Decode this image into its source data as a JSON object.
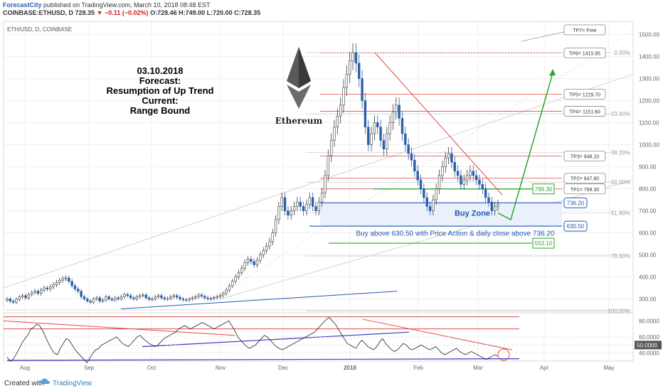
{
  "header": {
    "author": "ForecastCity",
    "published": "published on TradingView.com, March 10, 2018 08:48 EST",
    "symbol": "COINBASE:ETHUSD, D",
    "last": "728.35",
    "change": "▼ −0.11 (−0.02%)",
    "ohlc": "O:728.46 H:749.00 L:720.00 C:728.35"
  },
  "footer": {
    "created": "Created with",
    "brand": "TradingView"
  },
  "chart_data": {
    "type": "candlestick",
    "title": "ETH/USD, D, COINBASE",
    "y_ticks": [
      "1500.00",
      "1400.00",
      "1300.00",
      "1200.00",
      "1100.00",
      "1000.00",
      "900.00",
      "800.00",
      "700.00",
      "600.00",
      "500.00",
      "400.00",
      "300.00"
    ],
    "ylim": [
      250,
      1560
    ],
    "x_ticks": [
      "Aug",
      "Sep",
      "Oct",
      "Nov",
      "Dec",
      "2018",
      "Feb",
      "Mar",
      "Apr",
      "May"
    ],
    "last_price_label": "736.20",
    "annotation": {
      "date": "03.10.2018",
      "forecast_label": "Forecast:",
      "forecast": "Resumption of Up Trend",
      "current_label": "Current:",
      "current": "Range Bound"
    },
    "logo_text": "Ethereum",
    "buy_zone": "Buy Zone",
    "buy_condition": "Buy above 630.50 with Price Action & daily close above 736.20",
    "fib_levels": [
      {
        "label": "0.00%",
        "price": 1418
      },
      {
        "label": "23.60%",
        "price": 1140
      },
      {
        "label": "38.20%",
        "price": 965
      },
      {
        "label": "50.00%",
        "price": 830
      },
      {
        "label": "61.80%",
        "price": 690
      },
      {
        "label": "78.60%",
        "price": 495
      },
      {
        "label": "100.00%",
        "price": 245
      }
    ],
    "targets": [
      {
        "label": "TP7= Free",
        "price": 1510
      },
      {
        "label": "TP6= 1415.95",
        "price": 1415.95
      },
      {
        "label": "TP5= 1229.70",
        "price": 1229.7
      },
      {
        "label": "TP4= 1151.60",
        "price": 1151.6
      },
      {
        "label": "TP3= 948.10",
        "price": 948.1
      },
      {
        "label": "TP2= 847.80",
        "price": 847.8
      },
      {
        "label": "TP1= 799.30",
        "price": 799.3
      }
    ],
    "price_boxes": [
      {
        "label": "799.30",
        "price": 799.3,
        "color": "#2aa52a"
      },
      {
        "label": "736.20",
        "price": 736.2,
        "color": "#2058b4"
      },
      {
        "label": "630.50",
        "price": 630.5,
        "color": "#2058b4"
      },
      {
        "label": "553.10",
        "price": 553.1,
        "color": "#2aa52a"
      }
    ],
    "close_series": [
      300,
      290,
      285,
      298,
      310,
      315,
      305,
      320,
      330,
      335,
      325,
      340,
      350,
      345,
      355,
      365,
      375,
      385,
      392,
      395,
      380,
      360,
      345,
      335,
      310,
      300,
      290,
      285,
      300,
      305,
      290,
      295,
      310,
      300,
      295,
      305,
      300,
      310,
      320,
      315,
      305,
      300,
      310,
      315,
      318,
      305,
      298,
      300,
      310,
      315,
      305,
      300,
      302,
      310,
      315,
      308,
      300,
      296,
      295,
      300,
      305,
      310,
      318,
      312,
      305,
      300,
      302,
      306,
      310,
      315,
      325,
      340,
      360,
      380,
      400,
      420,
      440,
      465,
      480,
      470,
      455,
      475,
      500,
      520,
      540,
      560,
      600,
      660,
      720,
      760,
      700,
      680,
      700,
      720,
      740,
      720,
      700,
      730,
      760,
      720,
      700,
      740,
      780,
      860,
      950,
      1020,
      1080,
      1130,
      1180,
      1260,
      1320,
      1380,
      1418,
      1370,
      1300,
      1200,
      1080,
      1000,
      1050,
      1100,
      1080,
      1020,
      980,
      1050,
      1100,
      1150,
      1180,
      1120,
      1050,
      1000,
      960,
      930,
      880,
      840,
      800,
      760,
      720,
      700,
      750,
      800,
      860,
      900,
      940,
      960,
      920,
      880,
      860,
      820,
      840,
      860,
      880,
      860,
      840,
      820,
      800,
      760,
      740,
      700,
      720,
      728
    ]
  },
  "rsi_data": {
    "ticks": [
      "80.0000",
      "60.0000",
      "50.0000",
      "40.0000"
    ],
    "last_label": "50.0000",
    "series": [
      35,
      30,
      32,
      38,
      45,
      52,
      58,
      62,
      70,
      72,
      76,
      74,
      68,
      60,
      52,
      45,
      40,
      38,
      46,
      52,
      58,
      56,
      50,
      44,
      40,
      36,
      32,
      28,
      34,
      40,
      44,
      46,
      50,
      52,
      54,
      56,
      58,
      60,
      56,
      52,
      50,
      48,
      52,
      56,
      60,
      62,
      58,
      55,
      52,
      50,
      48,
      50,
      54,
      58,
      60,
      62,
      64,
      66,
      70,
      72,
      74,
      72,
      70,
      72,
      74,
      76,
      78,
      76,
      74,
      72,
      70,
      72,
      74,
      76,
      78,
      80,
      74,
      68,
      60,
      56,
      52,
      48,
      46,
      48,
      50,
      54,
      58,
      62,
      60,
      56,
      52,
      48,
      46,
      44,
      46,
      48,
      50,
      52,
      54,
      56,
      58,
      60,
      62,
      64,
      66,
      70,
      74,
      78,
      82,
      84,
      80,
      76,
      70,
      64,
      58,
      52,
      50,
      48,
      46,
      52,
      56,
      52,
      48,
      46,
      44,
      48,
      54,
      58,
      52,
      48,
      44,
      42,
      44,
      48,
      52,
      50,
      46,
      44,
      46,
      48,
      50,
      48,
      46,
      44,
      46,
      48,
      44,
      40,
      38,
      40,
      42,
      44,
      46,
      42,
      40,
      38,
      40,
      42,
      40,
      38,
      36,
      34,
      32,
      34,
      36,
      38,
      36
    ]
  }
}
